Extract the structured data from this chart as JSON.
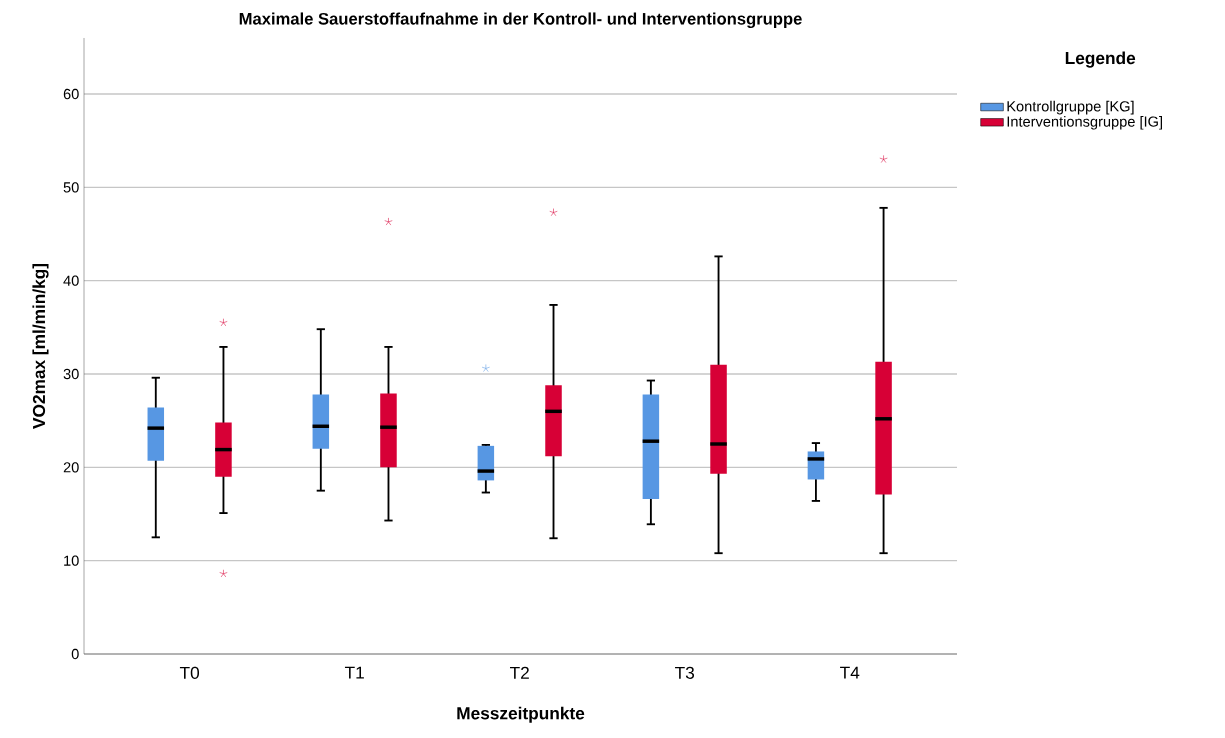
{
  "chart_data": {
    "type": "box",
    "title": "Maximale Sauerstoffaufnahme in der Kontroll- und Interventionsgruppe",
    "xlabel": "Messzeitpunkte",
    "ylabel": "VO2max [ml/min/kg]",
    "legend_title": "Legende",
    "legend": "right",
    "grid": "y",
    "marker": "star",
    "categories": [
      "T0",
      "T1",
      "T2",
      "T3",
      "T4"
    ],
    "ylim": [
      0,
      66
    ],
    "yticks": [
      0,
      10,
      20,
      30,
      40,
      50,
      60
    ],
    "series": [
      {
        "name": "Kontrollgruppe [KG]",
        "color": "#5797e3",
        "boxes": [
          {
            "low": 12.5,
            "q1": 20.7,
            "median": 24.2,
            "q3": 26.4,
            "high": 29.6
          },
          {
            "low": 17.5,
            "q1": 22.0,
            "median": 24.4,
            "q3": 27.8,
            "high": 34.8
          },
          {
            "low": 17.3,
            "q1": 18.6,
            "median": 19.6,
            "q3": 22.3,
            "high": 22.4,
            "outliers": [
              30.6
            ]
          },
          {
            "low": 13.9,
            "q1": 16.6,
            "median": 22.8,
            "q3": 27.8,
            "high": 29.3
          },
          {
            "low": 16.4,
            "q1": 18.7,
            "median": 20.9,
            "q3": 21.7,
            "high": 22.6
          }
        ]
      },
      {
        "name": "Interventionsgruppe [IG]",
        "color": "#d70036",
        "boxes": [
          {
            "low": 15.1,
            "q1": 19.0,
            "median": 21.9,
            "q3": 24.8,
            "high": 32.9,
            "outliers": [
              35.5,
              8.6
            ]
          },
          {
            "low": 14.3,
            "q1": 20.0,
            "median": 24.3,
            "q3": 27.9,
            "high": 32.9,
            "outliers": [
              46.3
            ]
          },
          {
            "low": 12.4,
            "q1": 21.2,
            "median": 26.0,
            "q3": 28.8,
            "high": 37.4,
            "outliers": [
              47.3
            ]
          },
          {
            "low": 10.8,
            "q1": 19.3,
            "median": 22.5,
            "q3": 31.0,
            "high": 42.6
          },
          {
            "low": 10.8,
            "q1": 17.1,
            "median": 25.2,
            "q3": 31.3,
            "high": 47.8,
            "outliers": [
              53.0
            ]
          }
        ]
      }
    ]
  }
}
